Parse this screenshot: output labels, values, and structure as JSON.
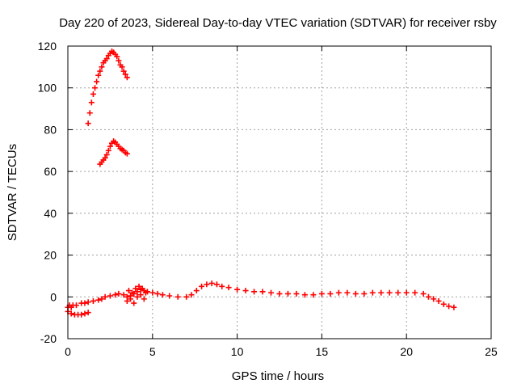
{
  "chart_data": {
    "type": "scatter",
    "title": "Day 220 of 2023, Sidereal Day-to-day VTEC variation (SDTVAR) for receiver rsby",
    "xlabel": "GPS time / hours",
    "ylabel": "SDTVAR / TECUs",
    "xlim": [
      0,
      25
    ],
    "ylim": [
      -20,
      120
    ],
    "xticks": [
      0,
      5,
      10,
      15,
      20,
      25
    ],
    "yticks": [
      -20,
      0,
      20,
      40,
      60,
      80,
      100,
      120
    ],
    "grid": true,
    "marker": "plus",
    "color": "#ff0000",
    "series": [
      {
        "name": "upper arc",
        "x": [
          1.2,
          1.3,
          1.4,
          1.5,
          1.6,
          1.7,
          1.8,
          1.9,
          2.0,
          2.1,
          2.2,
          2.3,
          2.4,
          2.5,
          2.6,
          2.7,
          2.8,
          2.9,
          3.0,
          3.1,
          3.2,
          3.3,
          3.4,
          3.5
        ],
        "y": [
          83,
          88,
          93,
          97,
          100,
          103,
          106,
          108,
          110,
          112,
          113,
          114,
          115.5,
          116.5,
          117.5,
          117,
          116,
          115,
          113,
          111,
          110,
          108,
          106.5,
          105
        ]
      },
      {
        "name": "middle arc",
        "x": [
          1.9,
          2.0,
          2.1,
          2.2,
          2.3,
          2.4,
          2.5,
          2.6,
          2.7,
          2.8,
          2.9,
          3.0,
          3.1,
          3.2,
          3.3,
          3.4,
          3.5
        ],
        "y": [
          63.5,
          64.5,
          65.5,
          66.5,
          68,
          70,
          72,
          73.5,
          74.5,
          74,
          73,
          72,
          71,
          70.5,
          70,
          69,
          68.5
        ]
      },
      {
        "name": "lower band",
        "x": [
          0.0,
          0.1,
          0.2,
          0.3,
          0.5,
          0.8,
          1.0,
          1.2,
          1.5,
          1.8,
          2.0,
          2.2,
          2.5,
          2.8,
          3.0,
          3.3,
          3.5,
          3.7,
          3.9,
          4.1,
          4.3,
          4.5,
          4.7,
          5.0,
          5.3,
          5.6,
          6.0,
          6.5,
          7.0,
          7.3,
          7.6,
          7.9,
          8.2,
          8.5,
          8.8,
          9.1,
          9.5,
          10.0,
          10.5,
          11.0,
          11.5,
          12.0,
          12.5,
          13.0,
          13.5,
          14.0,
          14.5,
          15.0,
          15.5,
          16.0,
          16.5,
          17.0,
          17.5,
          18.0,
          18.5,
          19.0,
          19.5,
          20.0,
          20.5,
          21.0,
          21.3,
          21.6,
          21.9,
          22.2,
          22.5,
          22.8
        ],
        "y": [
          -5,
          -4,
          -5,
          -4,
          -4,
          -3,
          -3,
          -2.5,
          -2,
          -1.5,
          -1,
          0,
          0.5,
          1,
          1.5,
          1,
          0,
          0.5,
          1.5,
          2.5,
          3.5,
          3,
          2.5,
          2,
          1.5,
          1,
          0.5,
          0,
          0,
          1,
          3,
          5,
          6,
          6.5,
          6,
          5,
          4.5,
          3.5,
          3,
          2.5,
          2.5,
          2,
          1.5,
          1.5,
          1.5,
          1,
          1,
          1.5,
          1.5,
          2,
          2,
          1.5,
          1.5,
          2,
          2,
          2,
          2,
          2,
          2,
          1.5,
          0,
          -1,
          -2,
          -3.5,
          -4.5,
          -5
        ]
      },
      {
        "name": "lower branch",
        "x": [
          0.0,
          0.2,
          0.4,
          0.6,
          0.8,
          1.0,
          1.2
        ],
        "y": [
          -7,
          -8,
          -8.5,
          -8.5,
          -8.5,
          -8,
          -7.5
        ]
      },
      {
        "name": "scatter near 4h",
        "x": [
          3.5,
          3.6,
          3.7,
          3.8,
          3.9,
          4.0,
          4.1,
          4.2,
          4.3,
          4.4,
          4.5,
          4.6
        ],
        "y": [
          -2,
          3,
          -1,
          2,
          -3,
          4,
          0,
          5,
          1,
          4,
          -1,
          2
        ]
      }
    ]
  }
}
